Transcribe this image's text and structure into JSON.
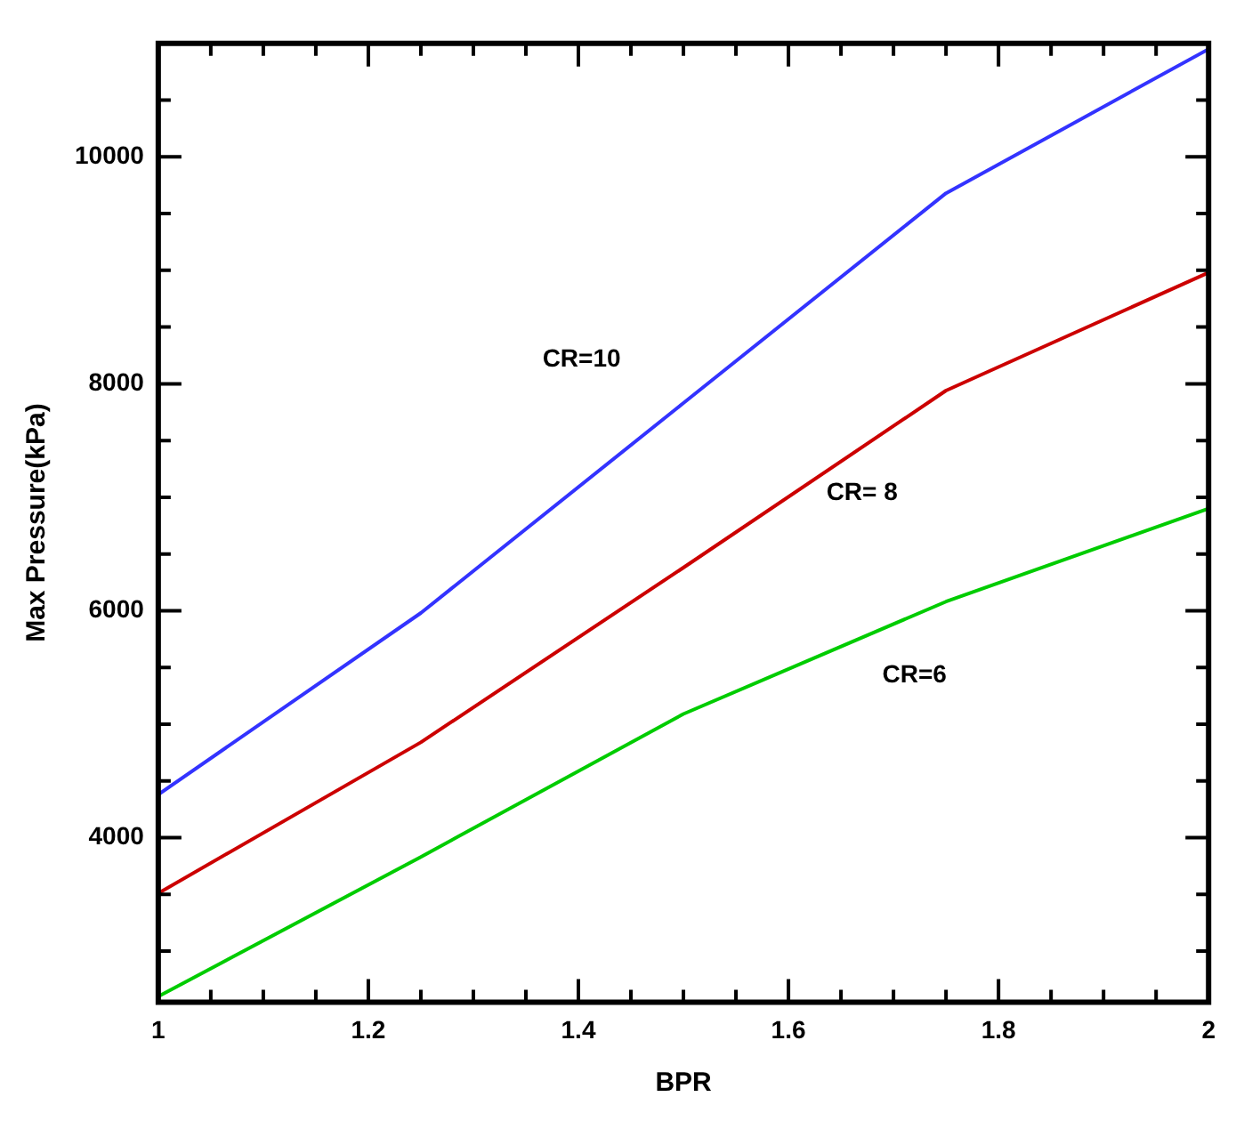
{
  "chart_data": {
    "type": "line",
    "xlabel": "BPR",
    "ylabel": "Max Pressure(kPa)",
    "x": [
      1,
      1.25,
      1.5,
      1.75,
      2
    ],
    "series": [
      {
        "name": "CR=10",
        "color": "#3333ff",
        "values": [
          4380,
          5980,
          7830,
          9680,
          10950
        ]
      },
      {
        "name": "CR= 8",
        "color": "#cc0000",
        "values": [
          3510,
          4840,
          6380,
          7940,
          8980
        ]
      },
      {
        "name": "CR=6",
        "color": "#00cc00",
        "values": [
          2600,
          3830,
          5090,
          6080,
          6900
        ]
      }
    ],
    "xlim": [
      1,
      2
    ],
    "ylim": [
      2550,
      11000
    ],
    "xticks": [
      1,
      {
        "value": 1.05,
        "label": null
      },
      {
        "value": 1.1,
        "label": null
      },
      {
        "value": 1.15,
        "label": null
      },
      1.2,
      {
        "value": 1.25,
        "label": null
      },
      {
        "value": 1.3,
        "label": null
      },
      {
        "value": 1.35,
        "label": null
      },
      1.4,
      {
        "value": 1.45,
        "label": null
      },
      {
        "value": 1.5,
        "label": null
      },
      {
        "value": 1.55,
        "label": null
      },
      1.6,
      {
        "value": 1.65,
        "label": null
      },
      {
        "value": 1.7,
        "label": null
      },
      {
        "value": 1.75,
        "label": null
      },
      1.8,
      {
        "value": 1.85,
        "label": null
      },
      {
        "value": 1.9,
        "label": null
      },
      {
        "value": 1.95,
        "label": null
      },
      2
    ],
    "yticks": [
      {
        "value": 3000,
        "label": null
      },
      {
        "value": 3500,
        "label": null
      },
      4000,
      {
        "value": 4500,
        "label": null
      },
      {
        "value": 5000,
        "label": null
      },
      {
        "value": 5500,
        "label": null
      },
      6000,
      {
        "value": 6500,
        "label": null
      },
      {
        "value": 7000,
        "label": null
      },
      {
        "value": 7500,
        "label": null
      },
      8000,
      {
        "value": 8500,
        "label": null
      },
      {
        "value": 9000,
        "label": null
      },
      {
        "value": 9500,
        "label": null
      },
      10000,
      {
        "value": 10500,
        "label": null
      }
    ],
    "grid": false,
    "legend": false,
    "marker": "none",
    "line_style": "solid"
  }
}
